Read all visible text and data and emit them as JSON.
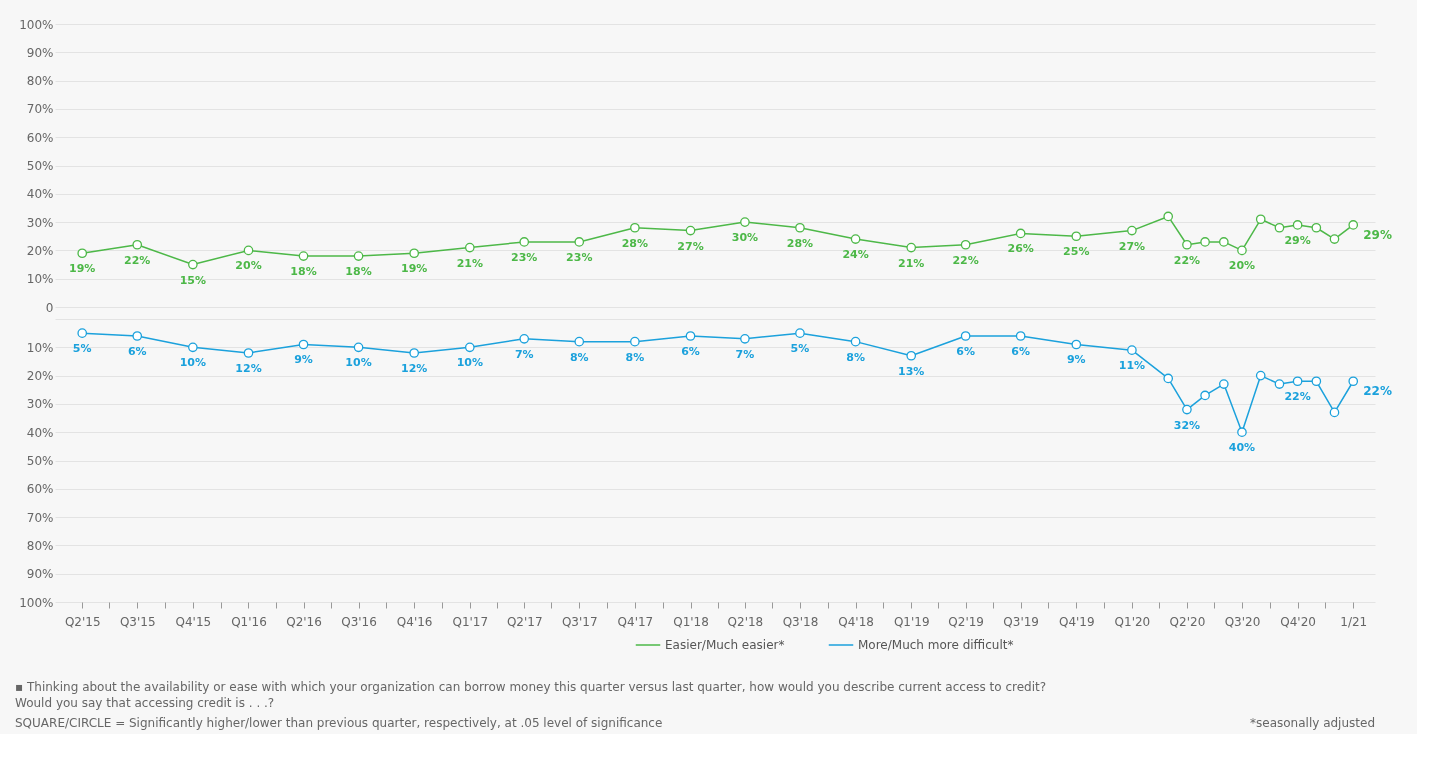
{
  "chart_data": [
    {
      "type": "line",
      "x": [
        "2015-04",
        "2015-07",
        "2015-10",
        "2016-01",
        "2016-04",
        "2016-07",
        "2016-10",
        "2017-01",
        "2017-04",
        "2017-07",
        "2017-10",
        "2018-01",
        "2018-04",
        "2018-07",
        "2018-10",
        "2019-01",
        "2019-04",
        "2019-07",
        "2019-10",
        "2020-01",
        "2020-03",
        "2020-04",
        "2020-05",
        "2020-06",
        "2020-07",
        "2020-08",
        "2020-09",
        "2020-10",
        "2020-11",
        "2020-12",
        "2021-01"
      ],
      "series": [
        {
          "name": "Easier/Much easier*",
          "color": "#4db848",
          "values": [
            19,
            22,
            15,
            20,
            18,
            18,
            19,
            21,
            23,
            23,
            28,
            27,
            30,
            28,
            24,
            21,
            22,
            26,
            25,
            27,
            32,
            22,
            23,
            23,
            20,
            31,
            28,
            29,
            28,
            24,
            29
          ],
          "value_labels": [
            "19%",
            "22%",
            "15%",
            "20%",
            "18%",
            "18%",
            "19%",
            "21%",
            "23%",
            "23%",
            "28%",
            "27%",
            "30%",
            "28%",
            "24%",
            "21%",
            "22%",
            "26%",
            "25%",
            "27%",
            null,
            "22%",
            null,
            null,
            "20%",
            null,
            null,
            "29%",
            null,
            null,
            "29%"
          ]
        }
      ],
      "xlim": [
        "2015-02-15",
        "2021-02-06"
      ],
      "ylim": [
        0,
        100
      ],
      "yticks": [
        0,
        {
          "value": 10,
          "label": "10%"
        },
        {
          "value": 20,
          "label": "20%"
        },
        {
          "value": 30,
          "label": "30%"
        },
        {
          "value": 40,
          "label": "40%"
        },
        {
          "value": 50,
          "label": "50%"
        },
        {
          "value": 60,
          "label": "60%"
        },
        {
          "value": 70,
          "label": "70%"
        },
        {
          "value": 80,
          "label": "80%"
        },
        {
          "value": 90,
          "label": "90%"
        },
        {
          "value": 100,
          "label": "100%"
        }
      ],
      "tick_labels": "y",
      "grid": "y",
      "legend": "bottom",
      "marker": "circle",
      "line_style": "solid"
    },
    {
      "type": "line",
      "x": [
        "2015-04",
        "2015-07",
        "2015-10",
        "2016-01",
        "2016-04",
        "2016-07",
        "2016-10",
        "2017-01",
        "2017-04",
        "2017-07",
        "2017-10",
        "2018-01",
        "2018-04",
        "2018-07",
        "2018-10",
        "2019-01",
        "2019-04",
        "2019-07",
        "2019-10",
        "2020-01",
        "2020-03",
        "2020-04",
        "2020-05",
        "2020-06",
        "2020-07",
        "2020-08",
        "2020-09",
        "2020-10",
        "2020-11",
        "2020-12",
        "2021-01"
      ],
      "series": [
        {
          "name": "More/Much more difficult*",
          "color": "#1ba1dc",
          "values": [
            5,
            6,
            10,
            12,
            9,
            10,
            12,
            10,
            7,
            8,
            8,
            6,
            7,
            5,
            8,
            13,
            6,
            6,
            9,
            11,
            21,
            32,
            27,
            23,
            40,
            20,
            23,
            22,
            22,
            33,
            22
          ],
          "value_labels": [
            "5%",
            "6%",
            "10%",
            "12%",
            "9%",
            "10%",
            "12%",
            "10%",
            "7%",
            "8%",
            "8%",
            "6%",
            "7%",
            "5%",
            "8%",
            "13%",
            "6%",
            "6%",
            "9%",
            "11%",
            null,
            "32%",
            null,
            null,
            "40%",
            null,
            null,
            "22%",
            null,
            null,
            "22%"
          ]
        }
      ],
      "xlim": [
        "2015-02-15",
        "2021-02-06"
      ],
      "xticks": [
        {
          "value": "2015-04",
          "label": "Q2'15"
        },
        {
          "value": "2015-05-16",
          "label": null
        },
        {
          "value": "2015-07",
          "label": "Q3'15"
        },
        {
          "value": "2015-08-16",
          "label": null
        },
        {
          "value": "2015-10",
          "label": "Q4'15"
        },
        {
          "value": "2015-11-16",
          "label": null
        },
        {
          "value": "2016-01",
          "label": "Q1'16"
        },
        {
          "value": "2016-02-15",
          "label": null
        },
        {
          "value": "2016-04",
          "label": "Q2'16"
        },
        {
          "value": "2016-05-16",
          "label": null
        },
        {
          "value": "2016-07",
          "label": "Q3'16"
        },
        {
          "value": "2016-08-16",
          "label": null
        },
        {
          "value": "2016-10",
          "label": "Q4'16"
        },
        {
          "value": "2016-11-16",
          "label": null
        },
        {
          "value": "2017-01",
          "label": "Q1'17"
        },
        {
          "value": "2017-02-15",
          "label": null
        },
        {
          "value": "2017-04",
          "label": "Q2'17"
        },
        {
          "value": "2017-05-16",
          "label": null
        },
        {
          "value": "2017-07",
          "label": "Q3'17"
        },
        {
          "value": "2017-08-16",
          "label": null
        },
        {
          "value": "2017-10",
          "label": "Q4'17"
        },
        {
          "value": "2017-11-16",
          "label": null
        },
        {
          "value": "2018-01",
          "label": "Q1'18"
        },
        {
          "value": "2018-02-15",
          "label": null
        },
        {
          "value": "2018-04",
          "label": "Q2'18"
        },
        {
          "value": "2018-05-16",
          "label": null
        },
        {
          "value": "2018-07",
          "label": "Q3'18"
        },
        {
          "value": "2018-08-16",
          "label": null
        },
        {
          "value": "2018-10",
          "label": "Q4'18"
        },
        {
          "value": "2018-11-16",
          "label": null
        },
        {
          "value": "2019-01",
          "label": "Q1'19"
        },
        {
          "value": "2019-02-15",
          "label": null
        },
        {
          "value": "2019-04",
          "label": "Q2'19"
        },
        {
          "value": "2019-05-16",
          "label": null
        },
        {
          "value": "2019-07",
          "label": "Q3'19"
        },
        {
          "value": "2019-08-16",
          "label": null
        },
        {
          "value": "2019-10",
          "label": "Q4'19"
        },
        {
          "value": "2019-11-16",
          "label": null
        },
        {
          "value": "2020-01",
          "label": "Q1'20"
        },
        {
          "value": "2020-02-15",
          "label": null
        },
        {
          "value": "2020-04",
          "label": "Q2'20"
        },
        {
          "value": "2020-05-16",
          "label": null
        },
        {
          "value": "2020-07",
          "label": "Q3'20"
        },
        {
          "value": "2020-08-16",
          "label": null
        },
        {
          "value": "2020-10",
          "label": "Q4'20"
        },
        {
          "value": "2020-11-16",
          "label": null
        },
        {
          "value": "2021-01",
          "label": "1/21"
        }
      ],
      "ylim": [
        100,
        0
      ],
      "yticks": [
        {
          "value": 0,
          "label": null
        },
        {
          "value": 10,
          "label": "10%"
        },
        {
          "value": 20,
          "label": "20%"
        },
        {
          "value": 30,
          "label": "30%"
        },
        {
          "value": 40,
          "label": "40%"
        },
        {
          "value": 50,
          "label": "50%"
        },
        {
          "value": 60,
          "label": "60%"
        },
        {
          "value": 70,
          "label": "70%"
        },
        {
          "value": 80,
          "label": "80%"
        },
        {
          "value": 90,
          "label": "90%"
        },
        {
          "value": 100,
          "label": "100%"
        }
      ],
      "grid": "y",
      "legend": "bottom",
      "marker": "circle",
      "line_style": "solid",
      "annotations": [
        "▪ Thinking about the availability or ease with which your organization can borrow money this quarter versus last quarter, how would you describe current access to credit?\n   Would you say that accessing credit is . . .?",
        "SQUARE/CIRCLE = Significantly higher/lower than previous quarter, respectively, at .05 level of significance",
        "*seasonally adjusted"
      ]
    }
  ]
}
